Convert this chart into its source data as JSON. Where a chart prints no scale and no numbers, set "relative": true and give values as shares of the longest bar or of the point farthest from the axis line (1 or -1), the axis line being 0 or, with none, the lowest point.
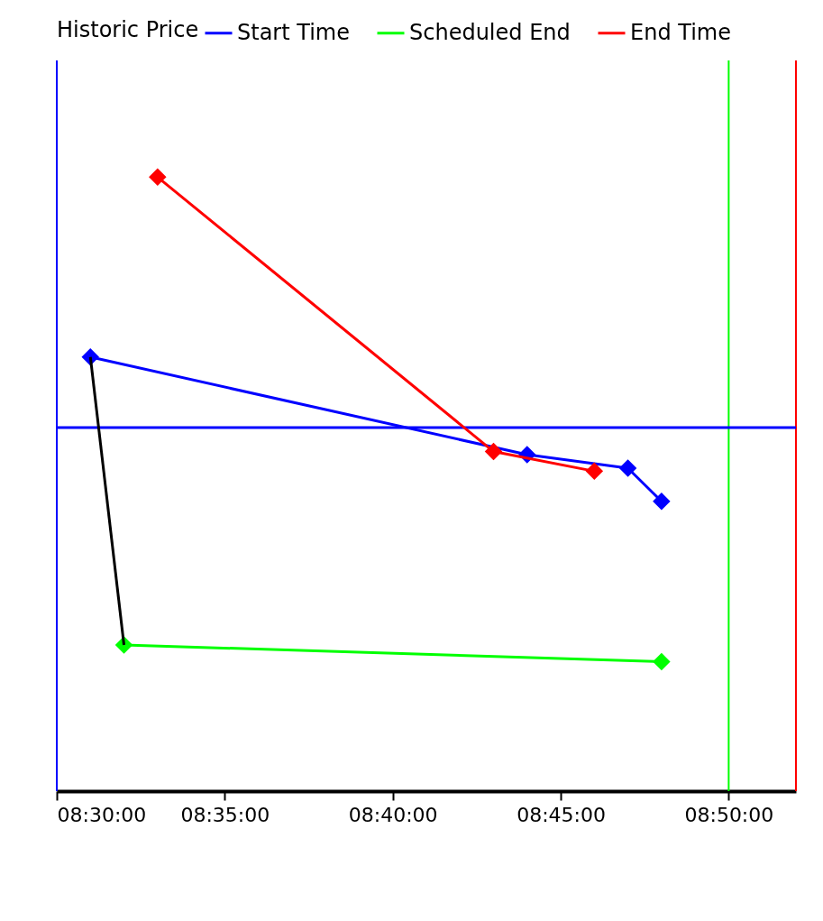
{
  "chart_data": {
    "type": "line",
    "relative": true,
    "legend_title": "Historic Price",
    "legend": "top",
    "grid": false,
    "marker": "diamond",
    "line_style": "solid",
    "xlim": [
      8.5,
      8.8667
    ],
    "xticks": [
      {
        "value": 8.5,
        "label": "08:30:00"
      },
      {
        "value": 8.58333,
        "label": "08:35:00"
      },
      {
        "value": 8.66667,
        "label": "08:40:00"
      },
      {
        "value": 8.75,
        "label": "08:45:00"
      },
      {
        "value": 8.83333,
        "label": "08:50:00"
      }
    ],
    "series": [
      {
        "color": "#0000ff",
        "x": [
          8.51667,
          8.73333,
          8.78333,
          8.8
        ],
        "values": [
          0.707,
          0.548,
          0.526,
          0.472
        ]
      },
      {
        "color": "#ff0000",
        "x": [
          8.55,
          8.71667,
          8.76667
        ],
        "values": [
          1.0,
          0.553,
          0.521
        ]
      },
      {
        "color": "#00ff00",
        "x": [
          8.53333,
          8.8
        ],
        "values": [
          0.238,
          0.211
        ]
      },
      {
        "color": "#000000",
        "marker": "none",
        "x": [
          8.51667,
          8.53333
        ],
        "values": [
          0.707,
          0.238
        ]
      }
    ],
    "ref_lines": [
      {
        "axis": "x",
        "value": 8.5,
        "label": "Start Time",
        "color": "#0000ff"
      },
      {
        "axis": "x",
        "value": 8.83333,
        "label": "Scheduled End",
        "color": "#00ff00"
      },
      {
        "axis": "x",
        "value": 8.8667,
        "label": "End Time",
        "color": "#ff0000"
      },
      {
        "axis": "y",
        "value": 0.592,
        "color": "#0000ff"
      }
    ]
  }
}
